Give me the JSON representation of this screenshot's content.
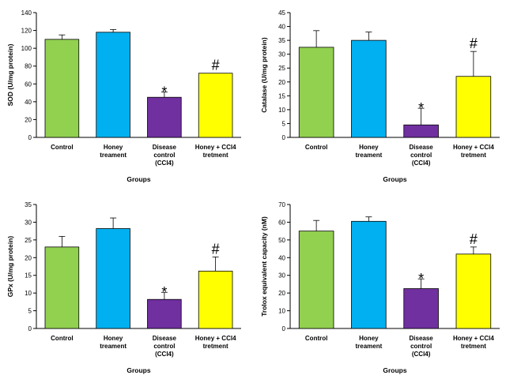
{
  "colors": {
    "control": "#92D050",
    "honey": "#00B0F0",
    "disease": "#7030A0",
    "honey_ccl4": "#FFFF00",
    "outline": "#000000"
  },
  "chart_data": [
    {
      "type": "bar",
      "categories": [
        [
          "Control"
        ],
        [
          "Honey",
          "treament"
        ],
        [
          "Disease",
          "control",
          "(CCl4)"
        ],
        [
          "Honey + CCl4",
          "tretment"
        ]
      ],
      "values": [
        110,
        118,
        45,
        72
      ],
      "errors": [
        5,
        3,
        6,
        0
      ],
      "significance": [
        "",
        "",
        "*",
        "#"
      ],
      "xlabel": "Groups",
      "ylabel": "SOD (U/mg protein)",
      "ylim": [
        0,
        140
      ],
      "yticks": [
        0,
        20,
        40,
        60,
        80,
        100,
        120,
        140
      ]
    },
    {
      "type": "bar",
      "categories": [
        [
          "Control"
        ],
        [
          "Honey",
          "treament"
        ],
        [
          "Disease",
          "control",
          "(CCl4)"
        ],
        [
          "Honey + CCl4",
          "tretment"
        ]
      ],
      "values": [
        32.5,
        35,
        4.5,
        22
      ],
      "errors": [
        6,
        3,
        6,
        9
      ],
      "significance": [
        "",
        "",
        "*",
        "#"
      ],
      "xlabel": "Groups",
      "ylabel": "Catalase (U/mg protein)",
      "ylim": [
        0,
        45
      ],
      "yticks": [
        0,
        5,
        10,
        15,
        20,
        25,
        30,
        35,
        40,
        45
      ]
    },
    {
      "type": "bar",
      "categories": [
        [
          "Control"
        ],
        [
          "Honey",
          "treament"
        ],
        [
          "Disease",
          "control",
          "(CCl4)"
        ],
        [
          "Honey + CCl4",
          "tretment"
        ]
      ],
      "values": [
        23,
        28.2,
        8.2,
        16.2
      ],
      "errors": [
        3,
        3,
        2,
        4
      ],
      "significance": [
        "",
        "",
        "*",
        "#"
      ],
      "xlabel": "Groups",
      "ylabel": "GPx (U/mg protein)",
      "ylim": [
        0,
        35
      ],
      "yticks": [
        0,
        5,
        10,
        15,
        20,
        25,
        30,
        35
      ]
    },
    {
      "type": "bar",
      "categories": [
        [
          "Control"
        ],
        [
          "Honey",
          "treament"
        ],
        [
          "Disease",
          "control",
          "(CCl4)"
        ],
        [
          "Honey + CCl4",
          "tretment"
        ]
      ],
      "values": [
        55,
        60.5,
        22.5,
        42
      ],
      "errors": [
        6,
        2.5,
        5.5,
        4
      ],
      "significance": [
        "",
        "",
        "*",
        "#"
      ],
      "xlabel": "Groups",
      "ylabel": "Trolox equivalent capacity (nM)",
      "ylim": [
        0,
        70
      ],
      "yticks": [
        0,
        10,
        20,
        30,
        40,
        50,
        60,
        70
      ]
    }
  ]
}
